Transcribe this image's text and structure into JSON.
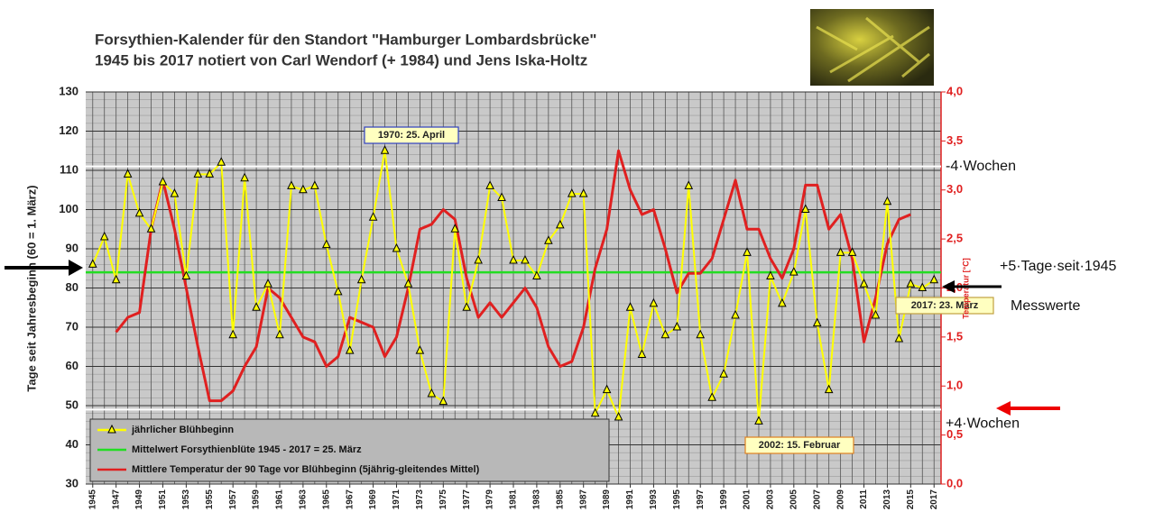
{
  "chart_data": {
    "type": "line",
    "title": "Forsythien-Kalender für den Standort \"Hamburger Lombardsbrücke\"",
    "subtitle": "1945 bis 2017 notiert  von Carl Wendorf (+ 1984) und Jens Iska-Holtz",
    "ylabel": "Tage seit Jahresbeginn (60 = 1. März)",
    "y2label": "Temperatur [°C]",
    "x": [
      1945,
      1946,
      1947,
      1948,
      1949,
      1950,
      1951,
      1952,
      1953,
      1954,
      1955,
      1956,
      1957,
      1958,
      1959,
      1960,
      1961,
      1962,
      1963,
      1964,
      1965,
      1966,
      1967,
      1968,
      1969,
      1970,
      1971,
      1972,
      1973,
      1974,
      1975,
      1976,
      1977,
      1978,
      1979,
      1980,
      1981,
      1982,
      1983,
      1984,
      1985,
      1986,
      1987,
      1988,
      1989,
      1990,
      1991,
      1992,
      1993,
      1994,
      1995,
      1996,
      1997,
      1998,
      1999,
      2000,
      2001,
      2002,
      2003,
      2004,
      2005,
      2006,
      2007,
      2008,
      2009,
      2010,
      2011,
      2012,
      2013,
      2014,
      2015,
      2016,
      2017
    ],
    "xlim": [
      1944.4,
      2017.6
    ],
    "xticks": [
      1945,
      1947,
      1949,
      1951,
      1953,
      1955,
      1957,
      1959,
      1961,
      1963,
      1965,
      1967,
      1969,
      1971,
      1973,
      1975,
      1977,
      1979,
      1981,
      1983,
      1985,
      1987,
      1989,
      1991,
      1993,
      1995,
      1997,
      1999,
      2001,
      2003,
      2005,
      2007,
      2009,
      2011,
      2013,
      2015,
      2017
    ],
    "ylim": [
      30,
      130
    ],
    "yticks": [
      30,
      40,
      50,
      60,
      70,
      80,
      90,
      100,
      110,
      120,
      130
    ],
    "y2lim": [
      0,
      4
    ],
    "y2ticks": [
      {
        "value": 0,
        "label": "0,0"
      },
      {
        "value": 0.5,
        "label": "0,5"
      },
      {
        "value": 1,
        "label": "1,0"
      },
      {
        "value": 1.5,
        "label": "1,5"
      },
      {
        "value": 2,
        "label": "2,0"
      },
      {
        "value": 2.5,
        "label": "2,5"
      },
      {
        "value": 3,
        "label": "3,0"
      },
      {
        "value": 3.5,
        "label": "3,5"
      },
      {
        "value": 4,
        "label": "4,0"
      }
    ],
    "grid": true,
    "series": [
      {
        "name": "jährlicher Blühbeginn",
        "color": "#ffff00",
        "values": [
          86,
          93,
          82,
          109,
          99,
          95,
          107,
          104,
          83,
          109,
          109,
          112,
          68,
          108,
          75,
          81,
          68,
          106,
          105,
          106,
          91,
          79,
          64,
          82,
          98,
          115,
          90,
          81,
          64,
          53,
          51,
          95,
          75,
          87,
          106,
          103,
          87,
          87,
          83,
          92,
          96,
          104,
          104,
          48,
          54,
          47,
          75,
          63,
          76,
          68,
          70,
          106,
          68,
          52,
          58,
          73,
          89,
          46,
          83,
          76,
          84,
          100,
          71,
          54,
          89,
          89,
          81,
          73,
          102,
          67,
          81,
          80,
          82
        ]
      },
      {
        "name": "Mittelwert Forsythienblüte 1945 - 2017 = 25. März",
        "color": "#22dd22",
        "value": 84
      },
      {
        "name": "Mittlere Temperatur der 90 Tage vor Blühbeginn (5jährig-gleitendes Mittel)",
        "color": "#e02020",
        "axis": "y2",
        "values": [
          null,
          null,
          1.55,
          1.7,
          1.75,
          2.6,
          3.1,
          2.6,
          2.0,
          1.4,
          0.85,
          0.85,
          0.95,
          1.2,
          1.4,
          2.0,
          1.9,
          1.7,
          1.5,
          1.45,
          1.2,
          1.3,
          1.7,
          1.65,
          1.6,
          1.3,
          1.5,
          2.0,
          2.6,
          2.65,
          2.8,
          2.7,
          2.1,
          1.7,
          1.85,
          1.7,
          1.85,
          2.0,
          1.8,
          1.4,
          1.2,
          1.25,
          1.6,
          2.2,
          2.6,
          3.4,
          3.0,
          2.75,
          2.8,
          2.4,
          1.95,
          2.15,
          2.15,
          2.3,
          2.7,
          3.1,
          2.6,
          2.6,
          2.3,
          2.1,
          2.4,
          3.05,
          3.05,
          2.6,
          2.75,
          2.3,
          1.45,
          1.9,
          2.45,
          2.7,
          2.75,
          null,
          null
        ]
      }
    ],
    "reference_lines": [
      {
        "value": 111,
        "label": "-4·Wochen"
      },
      {
        "value": 49,
        "label": "+4·Wochen"
      }
    ],
    "annotations": [
      "1970: 25. April",
      "2002: 15. Februar",
      "2017: 23. März",
      "+5·Tage·seit·1945",
      "Messwerte"
    ]
  }
}
